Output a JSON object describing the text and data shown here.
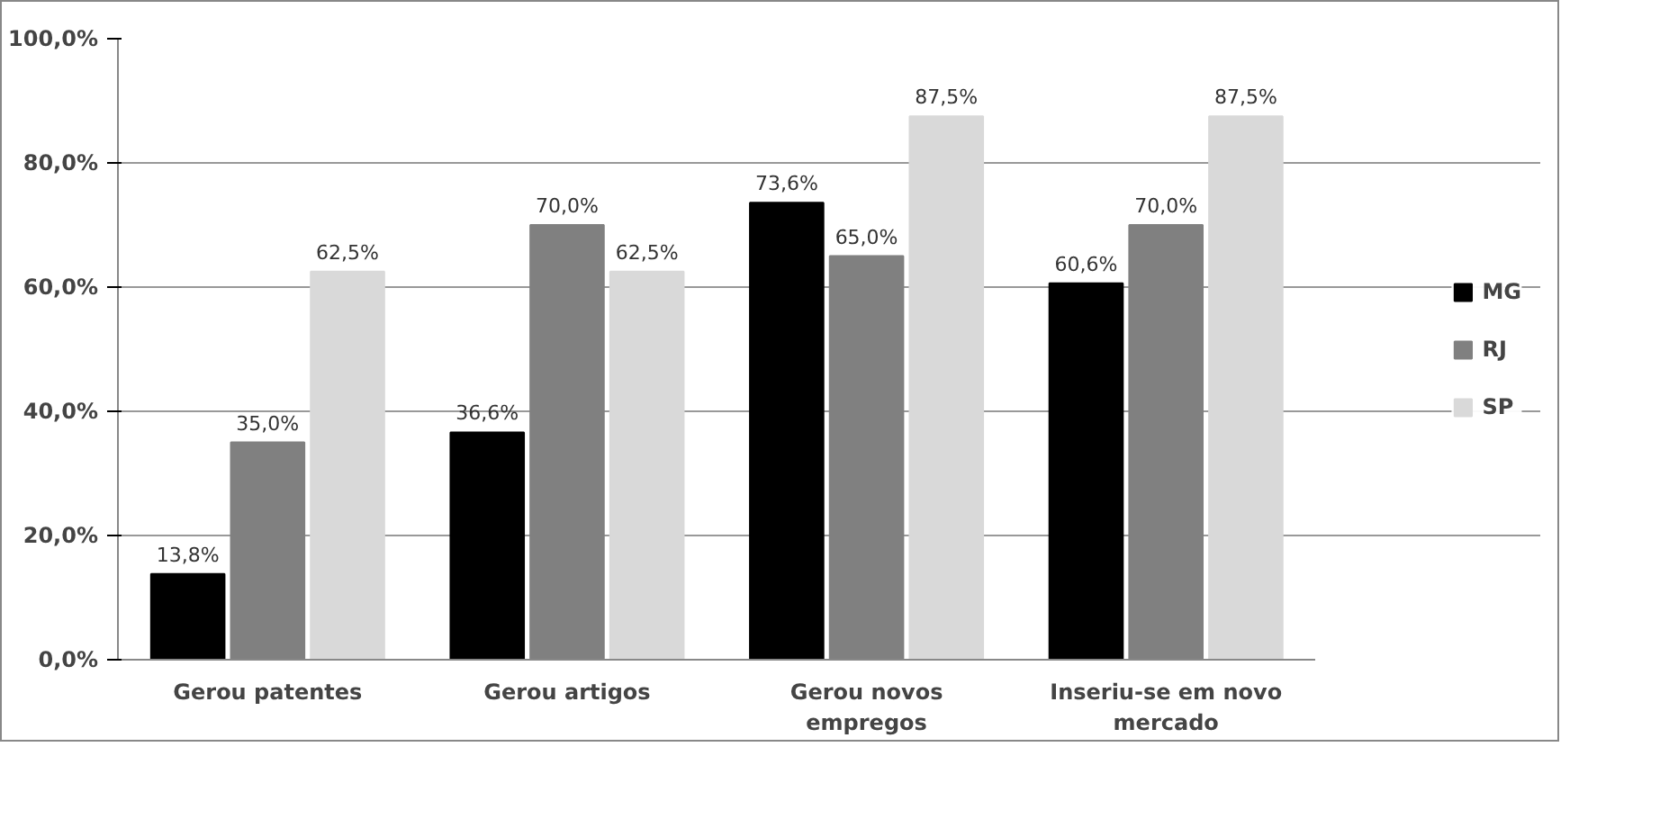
{
  "chart_data": {
    "type": "bar",
    "categories": [
      "Gerou patentes",
      "Gerou artigos",
      "Gerou novos empregos",
      "Inseriu-se em novo mercado"
    ],
    "series": [
      {
        "name": "MG",
        "color": "#000000",
        "values": [
          13.8,
          36.6,
          73.6,
          60.6
        ],
        "value_labels": [
          "13,8%",
          "36,6%",
          "73,6%",
          "60,6%"
        ]
      },
      {
        "name": "RJ",
        "color": "#808080",
        "values": [
          35.0,
          70.0,
          65.0,
          70.0
        ],
        "value_labels": [
          "35,0%",
          "70,0%",
          "65,0%",
          "70,0%"
        ]
      },
      {
        "name": "SP",
        "color": "#d9d9d9",
        "values": [
          62.5,
          62.5,
          87.5,
          87.5
        ],
        "value_labels": [
          "62,5%",
          "62,5%",
          "87,5%",
          "87,5%"
        ]
      }
    ],
    "ylim": [
      0,
      100
    ],
    "yticks": [
      {
        "value": 0,
        "label": "0,0%"
      },
      {
        "value": 20,
        "label": "20,0%"
      },
      {
        "value": 40,
        "label": "40,0%"
      },
      {
        "value": 60,
        "label": "60,0%"
      },
      {
        "value": 80,
        "label": "80,0%"
      },
      {
        "value": 100,
        "label": "100,0%"
      }
    ],
    "grid": "y",
    "legend": "right"
  }
}
